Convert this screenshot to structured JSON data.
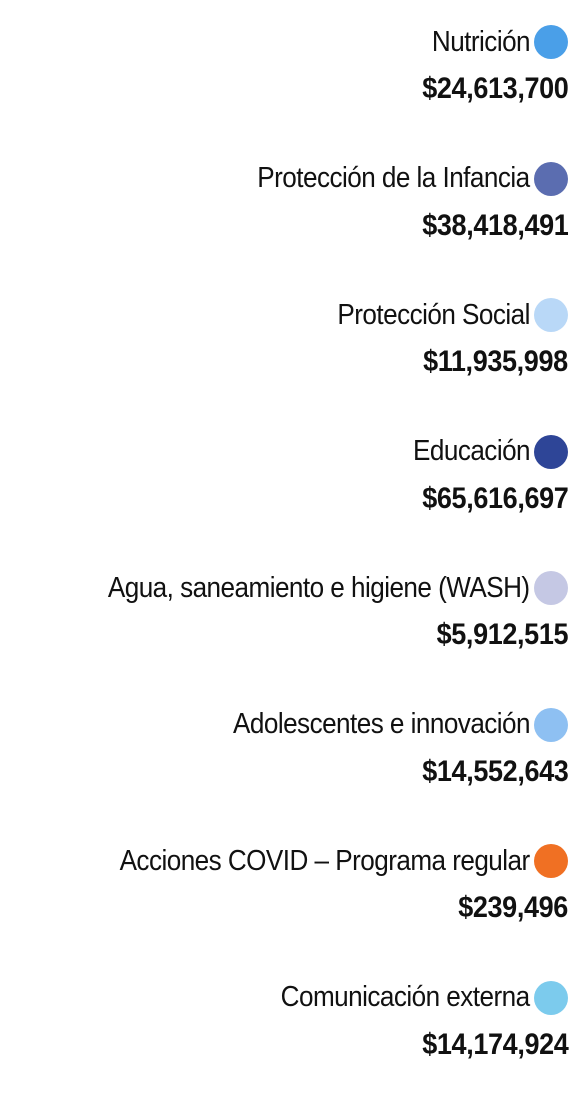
{
  "items": [
    {
      "label": "Nutrición",
      "amount": "$24,613,700",
      "color": "#4a9fe8"
    },
    {
      "label": "Protección de la Infancia",
      "amount": "$38,418,491",
      "color": "#5b6db0"
    },
    {
      "label": "Protección Social",
      "amount": "$11,935,998",
      "color": "#b9d8f7"
    },
    {
      "label": "Educación",
      "amount": "$65,616,697",
      "color": "#2e4597"
    },
    {
      "label": "Agua, saneamiento e higiene (WASH)",
      "amount": "$5,912,515",
      "color": "#c5c8e4"
    },
    {
      "label": "Adolescentes e innovación",
      "amount": "$14,552,643",
      "color": "#8ec0f2"
    },
    {
      "label": "Acciones COVID – Programa regular",
      "amount": "$239,496",
      "color": "#f07023"
    },
    {
      "label": "Comunicación externa",
      "amount": "$14,174,924",
      "color": "#7ccbed"
    }
  ]
}
